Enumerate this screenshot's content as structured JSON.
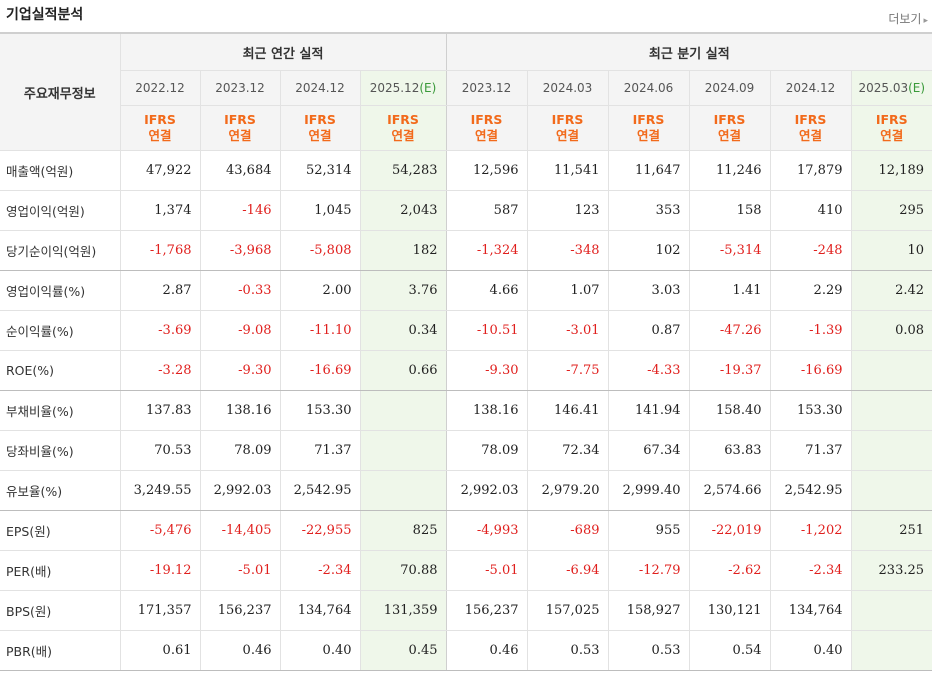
{
  "header": {
    "title": "기업실적분석",
    "more_label": "더보기",
    "more_arrow": "▸"
  },
  "table": {
    "corner_label": "주요재무정보",
    "group_annual": "최근 연간 실적",
    "group_quarter": "최근 분기 실적",
    "ifrs_line1": "IFRS",
    "ifrs_line2": "연결",
    "estimate_mark": "(E)",
    "periods": [
      {
        "label": "2022.12",
        "est": false
      },
      {
        "label": "2023.12",
        "est": false
      },
      {
        "label": "2024.12",
        "est": false
      },
      {
        "label": "2025.12",
        "est": true
      },
      {
        "label": "2023.12",
        "est": false
      },
      {
        "label": "2024.03",
        "est": false
      },
      {
        "label": "2024.06",
        "est": false
      },
      {
        "label": "2024.09",
        "est": false
      },
      {
        "label": "2024.12",
        "est": false
      },
      {
        "label": "2025.03",
        "est": true
      }
    ],
    "rows": [
      {
        "label": "매출액(억원)",
        "values": [
          "47,922",
          "43,684",
          "52,314",
          "54,283",
          "12,596",
          "11,541",
          "11,647",
          "11,246",
          "17,879",
          "12,189"
        ]
      },
      {
        "label": "영업이익(억원)",
        "values": [
          "1,374",
          "-146",
          "1,045",
          "2,043",
          "587",
          "123",
          "353",
          "158",
          "410",
          "295"
        ]
      },
      {
        "label": "당기순이익(억원)",
        "values": [
          "-1,768",
          "-3,968",
          "-5,808",
          "182",
          "-1,324",
          "-348",
          "102",
          "-5,314",
          "-248",
          "10"
        ],
        "group_end": true
      },
      {
        "label": "영업이익률(%)",
        "values": [
          "2.87",
          "-0.33",
          "2.00",
          "3.76",
          "4.66",
          "1.07",
          "3.03",
          "1.41",
          "2.29",
          "2.42"
        ]
      },
      {
        "label": "순이익률(%)",
        "values": [
          "-3.69",
          "-9.08",
          "-11.10",
          "0.34",
          "-10.51",
          "-3.01",
          "0.87",
          "-47.26",
          "-1.39",
          "0.08"
        ]
      },
      {
        "label": "ROE(%)",
        "values": [
          "-3.28",
          "-9.30",
          "-16.69",
          "0.66",
          "-9.30",
          "-7.75",
          "-4.33",
          "-19.37",
          "-16.69",
          ""
        ],
        "group_end": true
      },
      {
        "label": "부채비율(%)",
        "values": [
          "137.83",
          "138.16",
          "153.30",
          "",
          "138.16",
          "146.41",
          "141.94",
          "158.40",
          "153.30",
          ""
        ]
      },
      {
        "label": "당좌비율(%)",
        "values": [
          "70.53",
          "78.09",
          "71.37",
          "",
          "78.09",
          "72.34",
          "67.34",
          "63.83",
          "71.37",
          ""
        ]
      },
      {
        "label": "유보율(%)",
        "values": [
          "3,249.55",
          "2,992.03",
          "2,542.95",
          "",
          "2,992.03",
          "2,979.20",
          "2,999.40",
          "2,574.66",
          "2,542.95",
          ""
        ],
        "group_end": true
      },
      {
        "label": "EPS(원)",
        "values": [
          "-5,476",
          "-14,405",
          "-22,955",
          "825",
          "-4,993",
          "-689",
          "955",
          "-22,019",
          "-1,202",
          "251"
        ]
      },
      {
        "label": "PER(배)",
        "values": [
          "-19.12",
          "-5.01",
          "-2.34",
          "70.88",
          "-5.01",
          "-6.94",
          "-12.79",
          "-2.62",
          "-2.34",
          "233.25"
        ]
      },
      {
        "label": "BPS(원)",
        "values": [
          "171,357",
          "156,237",
          "134,764",
          "131,359",
          "156,237",
          "157,025",
          "158,927",
          "130,121",
          "134,764",
          ""
        ]
      },
      {
        "label": "PBR(배)",
        "values": [
          "0.61",
          "0.46",
          "0.40",
          "0.45",
          "0.46",
          "0.53",
          "0.53",
          "0.54",
          "0.40",
          ""
        ],
        "group_end": true
      }
    ]
  }
}
